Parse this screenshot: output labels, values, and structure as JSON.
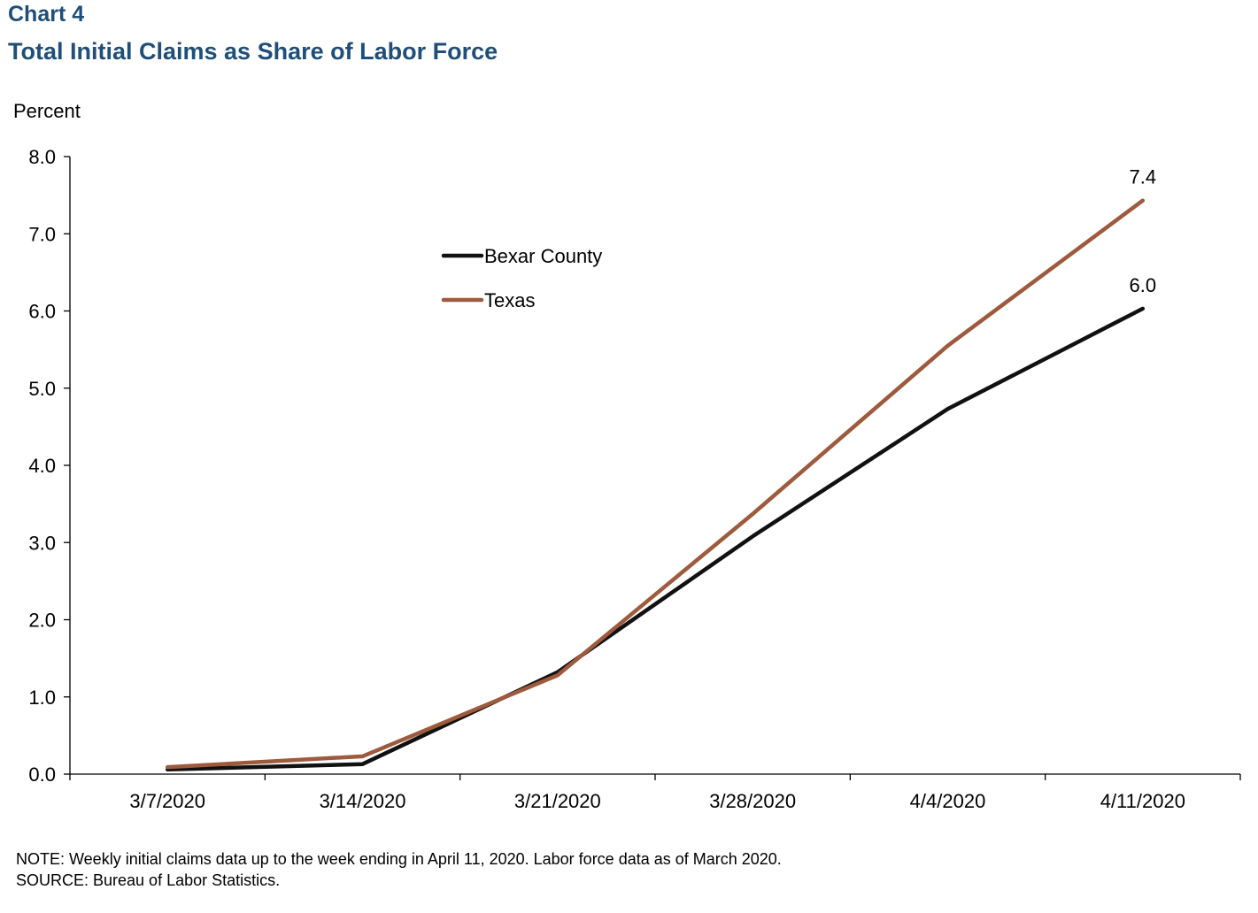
{
  "header": {
    "chart_number": "Chart 4",
    "title": "Total Initial Claims as Share of Labor Force"
  },
  "footer": {
    "note": "NOTE: Weekly initial claims data up to the week ending  in April 11, 2020. Labor force data as of March 2020.",
    "source": "SOURCE: Bureau of Labor Statistics."
  },
  "colors": {
    "title": "#1f4e79",
    "bexar": "#111111",
    "texas": "#9e5a3c"
  },
  "chart_data": {
    "type": "line",
    "title": "Total Initial Claims as Share of Labor Force",
    "ylabel": "Percent",
    "xlabel": "",
    "ylim": [
      0,
      8
    ],
    "yticks": [
      "0.0",
      "1.0",
      "2.0",
      "3.0",
      "4.0",
      "5.0",
      "6.0",
      "7.0",
      "8.0"
    ],
    "categories": [
      "3/7/2020",
      "3/14/2020",
      "3/21/2020",
      "3/28/2020",
      "4/4/2020",
      "4/11/2020"
    ],
    "grid": false,
    "legend_position": "upper-center",
    "series": [
      {
        "name": "Bexar County",
        "color": "#111111",
        "values": [
          0.06,
          0.13,
          1.32,
          3.08,
          4.73,
          6.03
        ],
        "end_label": "6.0"
      },
      {
        "name": "Texas",
        "color": "#9e5a3c",
        "values": [
          0.09,
          0.23,
          1.28,
          3.37,
          5.55,
          7.43
        ],
        "end_label": "7.4"
      }
    ]
  }
}
